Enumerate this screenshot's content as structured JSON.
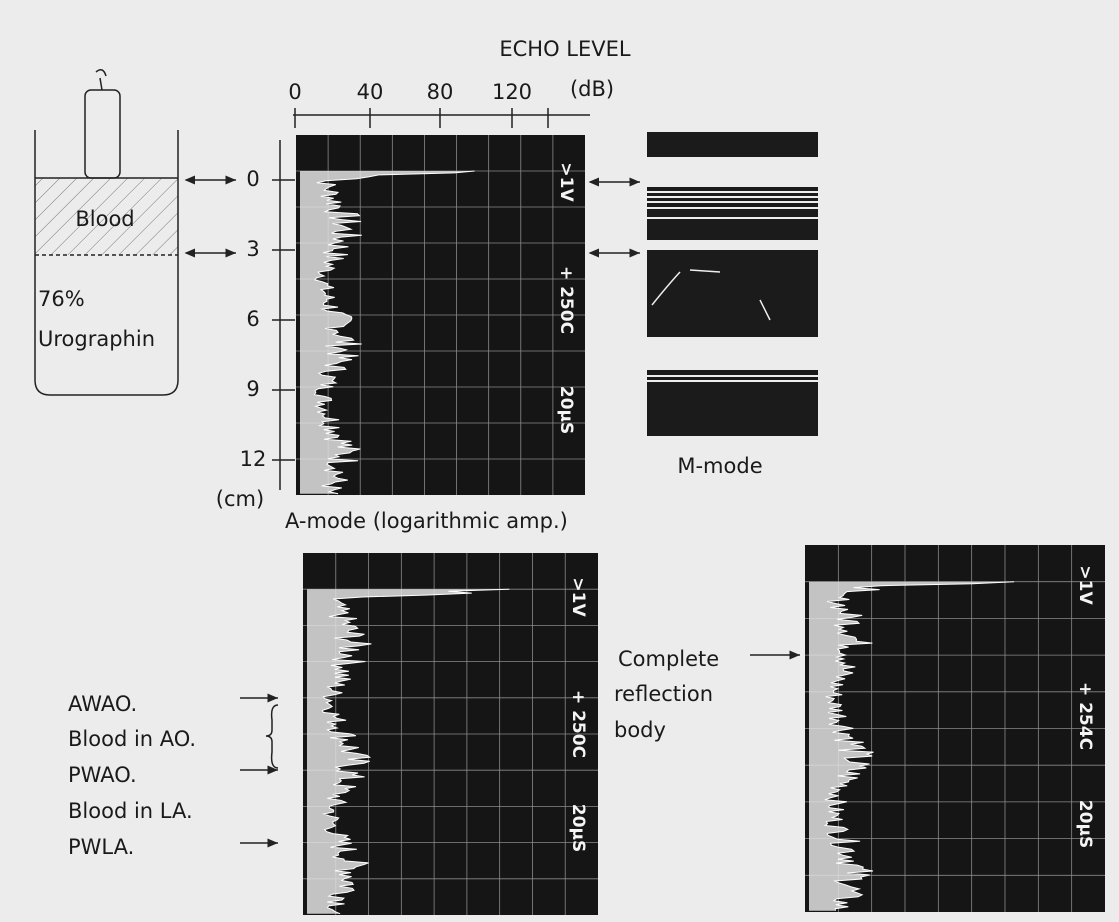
{
  "top_axis": {
    "title": "ECHO LEVEL",
    "ticks": [
      "0",
      "40",
      "80",
      "120"
    ],
    "unit": "(dB)"
  },
  "depth_axis": {
    "ticks": [
      "0",
      "3",
      "6",
      "9",
      "12"
    ],
    "unit": "(cm)"
  },
  "phantom": {
    "layer1": "Blood",
    "layer2_line1": "76%",
    "layer2_line2": "Urographin"
  },
  "a_mode": {
    "screen_labels": [
      ">1V",
      "+ 250C",
      "20μS"
    ],
    "caption": "A-mode (logarithmic amp.)"
  },
  "m_mode": {
    "caption": "M-mode"
  },
  "bottom_left": {
    "screen_labels": [
      ">1V",
      "+ 250C",
      "20μS"
    ],
    "labels": [
      "AWAO.",
      "Blood in AO.",
      "PWAO.",
      "Blood in LA.",
      "PWLA."
    ]
  },
  "bottom_right": {
    "screen_labels": [
      ">1V",
      "+ 254C",
      "20μS"
    ],
    "annotation": [
      "Complete",
      "reflection",
      "body"
    ]
  }
}
